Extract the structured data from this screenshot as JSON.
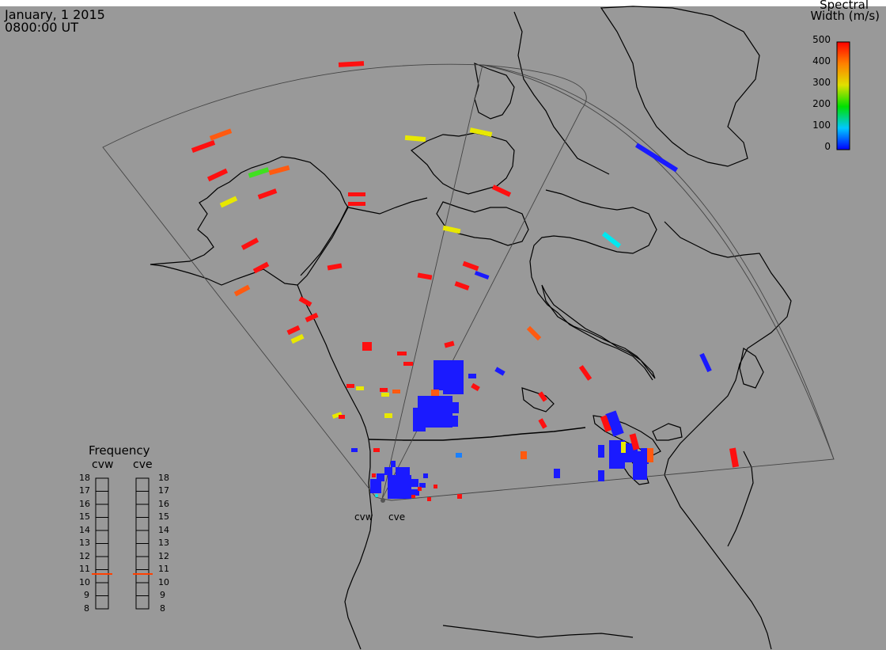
{
  "header": {
    "date": "January, 1 2015",
    "time": "0800:00 UT"
  },
  "colorbar": {
    "title_line1": "Spectral",
    "title_line2": "Width (m/s)",
    "ticks": [
      "500",
      "400",
      "300",
      "200",
      "100",
      "0"
    ],
    "colors": [
      "#0000ff",
      "#00c8ff",
      "#00e000",
      "#e0e000",
      "#ff8000",
      "#ff0000"
    ]
  },
  "frequency": {
    "title": "Frequency",
    "columns": [
      {
        "label": "cvw",
        "selected_mhz": 10.8
      },
      {
        "label": "cve",
        "selected_mhz": 10.8
      }
    ],
    "ticks": [
      "18",
      "17",
      "16",
      "15",
      "14",
      "13",
      "12",
      "11",
      "10",
      "9",
      "8"
    ],
    "marker_color": "#ff4000"
  },
  "radars": [
    {
      "label": "cvw"
    },
    {
      "label": "cve"
    }
  ],
  "scatter_colors": {
    "blue": "#1a1aff",
    "red": "#ff1010",
    "orange": "#ff5a10",
    "yellow": "#e8e800",
    "green": "#40e020",
    "cyan": "#00e8f0"
  }
}
